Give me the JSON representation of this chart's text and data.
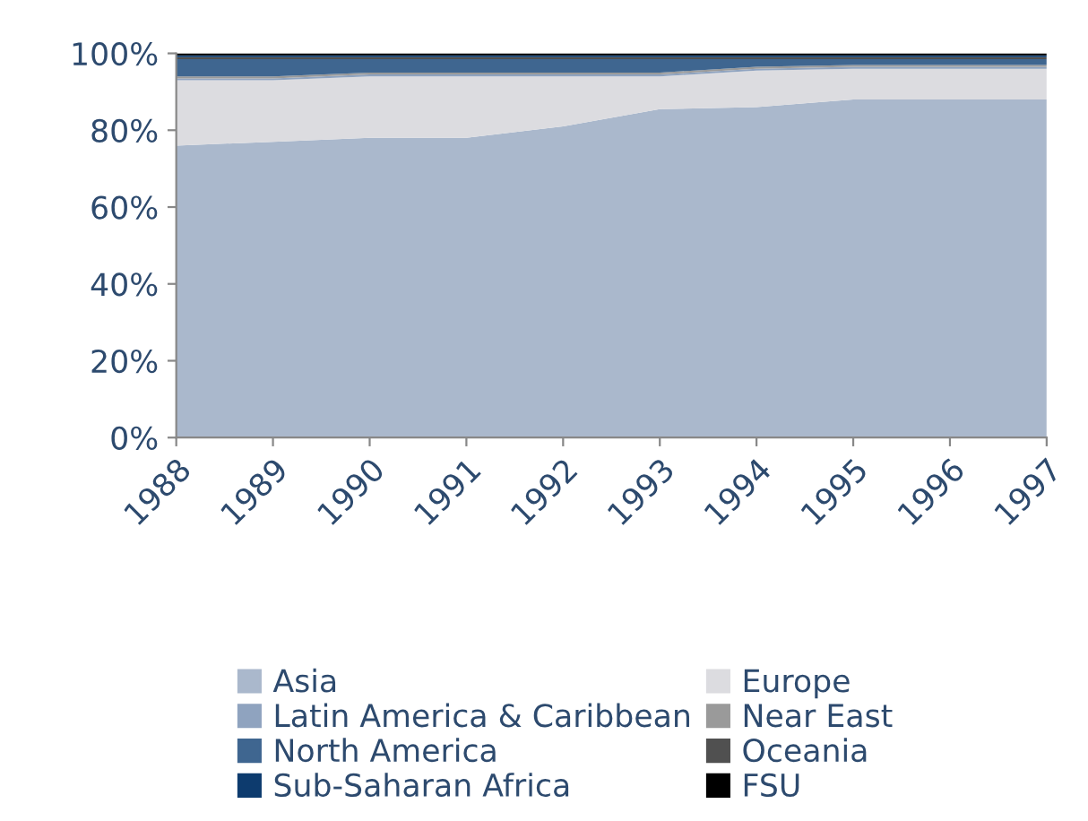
{
  "chart_data": {
    "type": "area",
    "stacked": true,
    "x": [
      1988,
      1989,
      1990,
      1991,
      1992,
      1993,
      1994,
      1995,
      1996,
      1997
    ],
    "xlim": [
      1988,
      1997
    ],
    "xticks": [
      1988,
      1989,
      1990,
      1991,
      1992,
      1993,
      1994,
      1995,
      1996,
      1997
    ],
    "ylim": [
      0,
      100
    ],
    "yticks": [
      {
        "value": 0,
        "label": "0%"
      },
      {
        "value": 20,
        "label": "20%"
      },
      {
        "value": 40,
        "label": "40%"
      },
      {
        "value": 60,
        "label": "60%"
      },
      {
        "value": 80,
        "label": "80%"
      },
      {
        "value": 100,
        "label": "100%"
      }
    ],
    "grid": false,
    "legend": "bottom",
    "series": [
      {
        "name": "Asia",
        "color": "#aab8cc",
        "values": [
          76,
          77,
          78,
          78,
          81,
          85.5,
          86,
          88,
          88,
          88
        ]
      },
      {
        "name": "Europe",
        "color": "#dcdce0",
        "values": [
          17,
          16,
          16,
          16,
          13,
          8.5,
          9.5,
          8,
          8,
          8
        ]
      },
      {
        "name": "Latin America & Caribbean",
        "color": "#8fa3bf",
        "values": [
          0.5,
          0.5,
          0.5,
          0.5,
          0.5,
          0.5,
          0.5,
          0.5,
          0.5,
          0.5
        ]
      },
      {
        "name": "Near East",
        "color": "#9a9a9a",
        "values": [
          0.5,
          0.5,
          0.5,
          0.5,
          0.5,
          0.5,
          0.5,
          0.5,
          0.5,
          0.5
        ]
      },
      {
        "name": "North America",
        "color": "#3f6690",
        "values": [
          4.5,
          4.5,
          3.5,
          3.5,
          3.5,
          3.5,
          2,
          1.5,
          1.5,
          1.5
        ]
      },
      {
        "name": "Oceania",
        "color": "#505050",
        "values": [
          0.5,
          0.5,
          0.5,
          0.5,
          0.5,
          0.5,
          0.5,
          0.5,
          0.5,
          0.5
        ]
      },
      {
        "name": "Sub-Saharan Africa",
        "color": "#0d3b6e",
        "values": [
          0.5,
          0.5,
          0.5,
          0.5,
          0.5,
          0.5,
          0.5,
          0.5,
          0.5,
          0.5
        ]
      },
      {
        "name": "FSU",
        "color": "#000000",
        "values": [
          0.5,
          0.5,
          0.5,
          0.5,
          0.5,
          0.5,
          0.5,
          0.5,
          0.5,
          0.5
        ]
      }
    ]
  }
}
